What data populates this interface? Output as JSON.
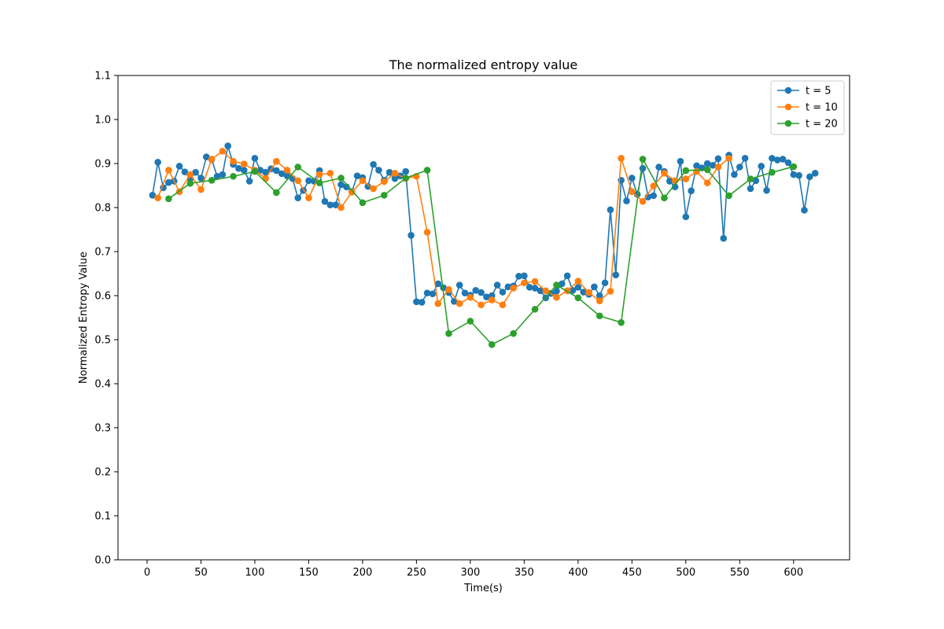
{
  "chart_data": {
    "type": "line",
    "title": "The normalized entropy value",
    "xlabel": "Time(s)",
    "ylabel": "Normalized Entropy Value",
    "xlim": [
      -27,
      652
    ],
    "ylim": [
      0.0,
      1.1
    ],
    "xticks": [
      0,
      50,
      100,
      150,
      200,
      250,
      300,
      350,
      400,
      450,
      500,
      550,
      600
    ],
    "yticks": [
      0.0,
      0.1,
      0.2,
      0.3,
      0.4,
      0.5,
      0.6,
      0.7,
      0.8,
      0.9,
      1.0,
      1.1
    ],
    "grid": false,
    "legend_position": "top-right",
    "series": [
      {
        "name": "t = 5",
        "color": "#1f77b4",
        "x": [
          5,
          10,
          15,
          20,
          25,
          30,
          35,
          40,
          45,
          50,
          55,
          60,
          65,
          70,
          75,
          80,
          85,
          90,
          95,
          100,
          105,
          110,
          115,
          120,
          125,
          130,
          135,
          140,
          145,
          150,
          155,
          160,
          165,
          170,
          175,
          180,
          185,
          190,
          195,
          200,
          205,
          210,
          215,
          220,
          225,
          230,
          235,
          240,
          245,
          250,
          255,
          260,
          265,
          270,
          275,
          280,
          285,
          290,
          295,
          300,
          305,
          310,
          315,
          320,
          325,
          330,
          335,
          340,
          345,
          350,
          355,
          360,
          365,
          370,
          375,
          380,
          385,
          390,
          395,
          400,
          405,
          410,
          415,
          420,
          425,
          430,
          435,
          440,
          445,
          450,
          455,
          460,
          465,
          470,
          475,
          480,
          485,
          490,
          495,
          500,
          505,
          510,
          515,
          520,
          525,
          530,
          535,
          540,
          545,
          550,
          555,
          560,
          565,
          570,
          575,
          580,
          585,
          590,
          595,
          600,
          605,
          610,
          615,
          620
        ],
        "y": [
          0.828,
          0.903,
          0.845,
          0.857,
          0.86,
          0.894,
          0.881,
          0.865,
          0.88,
          0.867,
          0.915,
          0.909,
          0.871,
          0.875,
          0.94,
          0.898,
          0.889,
          0.885,
          0.86,
          0.912,
          0.885,
          0.88,
          0.888,
          0.884,
          0.877,
          0.872,
          0.866,
          0.822,
          0.839,
          0.861,
          0.86,
          0.884,
          0.814,
          0.806,
          0.806,
          0.852,
          0.847,
          0.836,
          0.872,
          0.868,
          0.848,
          0.898,
          0.885,
          0.862,
          0.88,
          0.866,
          0.872,
          0.882,
          0.737,
          0.586,
          0.585,
          0.606,
          0.604,
          0.627,
          0.618,
          0.607,
          0.587,
          0.624,
          0.606,
          0.601,
          0.612,
          0.607,
          0.597,
          0.6,
          0.624,
          0.608,
          0.62,
          0.622,
          0.644,
          0.645,
          0.619,
          0.617,
          0.611,
          0.595,
          0.605,
          0.61,
          0.627,
          0.645,
          0.612,
          0.619,
          0.608,
          0.603,
          0.62,
          0.6,
          0.629,
          0.795,
          0.647,
          0.862,
          0.815,
          0.867,
          0.83,
          0.889,
          0.824,
          0.827,
          0.892,
          0.882,
          0.86,
          0.847,
          0.905,
          0.779,
          0.838,
          0.895,
          0.89,
          0.9,
          0.896,
          0.911,
          0.73,
          0.919,
          0.875,
          0.892,
          0.912,
          0.843,
          0.861,
          0.894,
          0.839,
          0.912,
          0.908,
          0.91,
          0.902,
          0.875,
          0.873,
          0.794,
          0.87,
          0.878
        ]
      },
      {
        "name": "t = 10",
        "color": "#ff7f0e",
        "x": [
          10,
          20,
          30,
          40,
          50,
          60,
          70,
          80,
          90,
          100,
          110,
          120,
          130,
          140,
          150,
          160,
          170,
          180,
          190,
          200,
          210,
          220,
          230,
          240,
          250,
          260,
          270,
          280,
          290,
          300,
          310,
          320,
          330,
          340,
          350,
          360,
          370,
          380,
          390,
          400,
          410,
          420,
          430,
          440,
          450,
          460,
          470,
          480,
          490,
          500,
          510,
          520,
          530,
          540
        ],
        "y": [
          0.822,
          0.885,
          0.836,
          0.875,
          0.841,
          0.91,
          0.928,
          0.905,
          0.899,
          0.885,
          0.866,
          0.905,
          0.885,
          0.861,
          0.822,
          0.875,
          0.878,
          0.8,
          0.835,
          0.861,
          0.843,
          0.859,
          0.878,
          0.866,
          0.871,
          0.744,
          0.582,
          0.614,
          0.582,
          0.596,
          0.579,
          0.59,
          0.579,
          0.617,
          0.629,
          0.632,
          0.611,
          0.596,
          0.611,
          0.633,
          0.607,
          0.588,
          0.61,
          0.912,
          0.836,
          0.814,
          0.849,
          0.878,
          0.861,
          0.865,
          0.882,
          0.856,
          0.892,
          0.912
        ]
      },
      {
        "name": "t = 20",
        "color": "#2ca02c",
        "x": [
          20,
          40,
          60,
          80,
          100,
          120,
          140,
          160,
          180,
          200,
          220,
          240,
          260,
          280,
          300,
          320,
          340,
          360,
          380,
          400,
          420,
          440,
          460,
          480,
          500,
          520,
          540,
          560,
          580,
          600
        ],
        "y": [
          0.82,
          0.855,
          0.862,
          0.871,
          0.882,
          0.834,
          0.892,
          0.856,
          0.867,
          0.811,
          0.828,
          0.867,
          0.885,
          0.514,
          0.542,
          0.489,
          0.514,
          0.569,
          0.624,
          0.595,
          0.554,
          0.539,
          0.91,
          0.822,
          0.884,
          0.886,
          0.827,
          0.865,
          0.88,
          0.893
        ]
      }
    ]
  }
}
